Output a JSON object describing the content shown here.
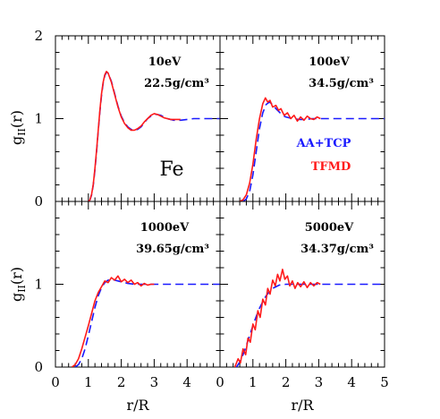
{
  "chart_data": {
    "type": "line",
    "xlabel": "r/R",
    "ylabel_main": "g",
    "ylabel_sub": "II",
    "ylabel_suffix": "(r)",
    "xlim": [
      0,
      5
    ],
    "ylim": [
      0,
      2
    ],
    "x_ticks_left": [
      "0",
      "1",
      "2",
      "3",
      "4"
    ],
    "x_ticks_right": [
      "0",
      "1",
      "2",
      "3",
      "4",
      "5"
    ],
    "y_ticks_top": [
      "2",
      "1",
      "0"
    ],
    "y_ticks_bottom": [
      "1",
      "0"
    ],
    "material_label": "Fe",
    "legend": [
      {
        "name": "AA+TCP",
        "color": "#1a1aff",
        "style": "dashed"
      },
      {
        "name": "TFMD",
        "color": "#ff1a1a",
        "style": "solid"
      }
    ],
    "panels": [
      {
        "id": "top-left",
        "energy": "10eV",
        "density": "22.5g/cm³",
        "series": [
          {
            "name": "AA+TCP",
            "color": "#1a1aff",
            "style": "dashed",
            "points": [
              [
                1.0,
                0
              ],
              [
                1.05,
                0.02
              ],
              [
                1.1,
                0.08
              ],
              [
                1.15,
                0.2
              ],
              [
                1.2,
                0.38
              ],
              [
                1.25,
                0.6
              ],
              [
                1.3,
                0.85
              ],
              [
                1.35,
                1.08
              ],
              [
                1.4,
                1.28
              ],
              [
                1.45,
                1.43
              ],
              [
                1.5,
                1.52
              ],
              [
                1.55,
                1.56
              ],
              [
                1.6,
                1.55
              ],
              [
                1.7,
                1.45
              ],
              [
                1.8,
                1.3
              ],
              [
                1.9,
                1.15
              ],
              [
                2.0,
                1.03
              ],
              [
                2.1,
                0.95
              ],
              [
                2.2,
                0.9
              ],
              [
                2.3,
                0.87
              ],
              [
                2.4,
                0.86
              ],
              [
                2.5,
                0.87
              ],
              [
                2.6,
                0.9
              ],
              [
                2.7,
                0.95
              ],
              [
                2.8,
                1.0
              ],
              [
                2.9,
                1.03
              ],
              [
                3.0,
                1.05
              ],
              [
                3.1,
                1.05
              ],
              [
                3.2,
                1.04
              ],
              [
                3.3,
                1.02
              ],
              [
                3.4,
                1.0
              ],
              [
                3.5,
                0.99
              ],
              [
                3.6,
                0.98
              ],
              [
                3.8,
                0.98
              ],
              [
                4.0,
                0.99
              ],
              [
                4.2,
                1.0
              ],
              [
                4.5,
                1.0
              ],
              [
                5.0,
                1.0
              ]
            ]
          },
          {
            "name": "TFMD",
            "color": "#ff1a1a",
            "style": "solid",
            "points": [
              [
                1.0,
                0
              ],
              [
                1.05,
                0.02
              ],
              [
                1.1,
                0.09
              ],
              [
                1.15,
                0.21
              ],
              [
                1.2,
                0.4
              ],
              [
                1.25,
                0.62
              ],
              [
                1.3,
                0.86
              ],
              [
                1.35,
                1.1
              ],
              [
                1.4,
                1.3
              ],
              [
                1.45,
                1.44
              ],
              [
                1.5,
                1.53
              ],
              [
                1.55,
                1.57
              ],
              [
                1.6,
                1.55
              ],
              [
                1.7,
                1.44
              ],
              [
                1.8,
                1.29
              ],
              [
                1.9,
                1.14
              ],
              [
                2.0,
                1.02
              ],
              [
                2.1,
                0.94
              ],
              [
                2.2,
                0.89
              ],
              [
                2.3,
                0.86
              ],
              [
                2.4,
                0.86
              ],
              [
                2.5,
                0.88
              ],
              [
                2.6,
                0.91
              ],
              [
                2.7,
                0.96
              ],
              [
                2.8,
                1.0
              ],
              [
                2.9,
                1.04
              ],
              [
                3.0,
                1.06
              ],
              [
                3.1,
                1.05
              ],
              [
                3.2,
                1.03
              ],
              [
                3.3,
                1.01
              ],
              [
                3.4,
                1.0
              ],
              [
                3.5,
                0.99
              ],
              [
                3.6,
                0.99
              ],
              [
                3.7,
                0.99
              ],
              [
                3.8,
                0.99
              ]
            ]
          }
        ]
      },
      {
        "id": "top-right",
        "energy": "100eV",
        "density": "34.5g/cm³",
        "series": [
          {
            "name": "AA+TCP",
            "color": "#1a1aff",
            "style": "dashed",
            "points": [
              [
                0.7,
                0
              ],
              [
                0.8,
                0.03
              ],
              [
                0.9,
                0.12
              ],
              [
                1.0,
                0.32
              ],
              [
                1.1,
                0.6
              ],
              [
                1.2,
                0.88
              ],
              [
                1.3,
                1.07
              ],
              [
                1.4,
                1.17
              ],
              [
                1.5,
                1.2
              ],
              [
                1.6,
                1.17
              ],
              [
                1.7,
                1.12
              ],
              [
                1.8,
                1.08
              ],
              [
                1.9,
                1.04
              ],
              [
                2.0,
                1.02
              ],
              [
                2.2,
                1.0
              ],
              [
                2.4,
                0.99
              ],
              [
                2.6,
                0.99
              ],
              [
                2.8,
                1.0
              ],
              [
                3.0,
                1.0
              ],
              [
                3.5,
                1.0
              ],
              [
                4.0,
                1.0
              ],
              [
                4.5,
                1.0
              ],
              [
                5.0,
                1.0
              ]
            ]
          },
          {
            "name": "TFMD",
            "color": "#ff1a1a",
            "style": "solid",
            "points": [
              [
                0.6,
                0
              ],
              [
                0.7,
                0.02
              ],
              [
                0.8,
                0.08
              ],
              [
                0.9,
                0.22
              ],
              [
                1.0,
                0.45
              ],
              [
                1.1,
                0.75
              ],
              [
                1.2,
                1.0
              ],
              [
                1.3,
                1.18
              ],
              [
                1.38,
                1.25
              ],
              [
                1.45,
                1.2
              ],
              [
                1.52,
                1.22
              ],
              [
                1.6,
                1.14
              ],
              [
                1.7,
                1.16
              ],
              [
                1.78,
                1.1
              ],
              [
                1.85,
                1.12
              ],
              [
                1.95,
                1.04
              ],
              [
                2.05,
                1.07
              ],
              [
                2.15,
                1.0
              ],
              [
                2.25,
                1.04
              ],
              [
                2.35,
                0.97
              ],
              [
                2.45,
                1.02
              ],
              [
                2.55,
                0.98
              ],
              [
                2.65,
                1.03
              ],
              [
                2.75,
                1.0
              ],
              [
                2.85,
                0.99
              ],
              [
                2.95,
                1.02
              ],
              [
                3.05,
                1.0
              ]
            ]
          }
        ]
      },
      {
        "id": "bottom-left",
        "energy": "1000eV",
        "density": "39.65g/cm³",
        "series": [
          {
            "name": "AA+TCP",
            "color": "#1a1aff",
            "style": "dashed",
            "points": [
              [
                0.6,
                0
              ],
              [
                0.7,
                0.03
              ],
              [
                0.8,
                0.1
              ],
              [
                0.9,
                0.22
              ],
              [
                1.0,
                0.38
              ],
              [
                1.1,
                0.55
              ],
              [
                1.2,
                0.72
              ],
              [
                1.3,
                0.86
              ],
              [
                1.4,
                0.96
              ],
              [
                1.5,
                1.02
              ],
              [
                1.6,
                1.05
              ],
              [
                1.7,
                1.06
              ],
              [
                1.8,
                1.05
              ],
              [
                1.9,
                1.04
              ],
              [
                2.0,
                1.03
              ],
              [
                2.2,
                1.01
              ],
              [
                2.4,
                1.0
              ],
              [
                2.6,
                1.0
              ],
              [
                2.8,
                1.0
              ],
              [
                3.0,
                1.0
              ],
              [
                3.5,
                1.0
              ],
              [
                4.0,
                1.0
              ],
              [
                4.5,
                1.0
              ],
              [
                5.0,
                1.0
              ]
            ]
          },
          {
            "name": "TFMD",
            "color": "#ff1a1a",
            "style": "solid",
            "points": [
              [
                0.5,
                0
              ],
              [
                0.6,
                0.03
              ],
              [
                0.7,
                0.1
              ],
              [
                0.8,
                0.22
              ],
              [
                0.9,
                0.36
              ],
              [
                1.0,
                0.5
              ],
              [
                1.1,
                0.65
              ],
              [
                1.2,
                0.8
              ],
              [
                1.3,
                0.9
              ],
              [
                1.4,
                0.97
              ],
              [
                1.5,
                1.04
              ],
              [
                1.6,
                1.02
              ],
              [
                1.7,
                1.08
              ],
              [
                1.8,
                1.05
              ],
              [
                1.9,
                1.1
              ],
              [
                2.0,
                1.03
              ],
              [
                2.1,
                1.06
              ],
              [
                2.2,
                1.02
              ],
              [
                2.3,
                1.05
              ],
              [
                2.4,
                1.0
              ],
              [
                2.5,
                1.02
              ],
              [
                2.6,
                0.98
              ],
              [
                2.7,
                1.01
              ],
              [
                2.8,
                0.99
              ],
              [
                2.9,
                1.0
              ],
              [
                3.0,
                1.0
              ]
            ]
          }
        ]
      },
      {
        "id": "bottom-right",
        "energy": "5000eV",
        "density": "34.37g/cm³",
        "series": [
          {
            "name": "AA+TCP",
            "color": "#1a1aff",
            "style": "dashed",
            "points": [
              [
                0.5,
                0
              ],
              [
                0.6,
                0.06
              ],
              [
                0.7,
                0.15
              ],
              [
                0.8,
                0.26
              ],
              [
                0.9,
                0.38
              ],
              [
                1.0,
                0.5
              ],
              [
                1.1,
                0.61
              ],
              [
                1.2,
                0.71
              ],
              [
                1.3,
                0.79
              ],
              [
                1.4,
                0.86
              ],
              [
                1.5,
                0.91
              ],
              [
                1.6,
                0.95
              ],
              [
                1.7,
                0.97
              ],
              [
                1.8,
                0.99
              ],
              [
                2.0,
                1.0
              ],
              [
                2.5,
                1.0
              ],
              [
                3.0,
                1.0
              ],
              [
                3.5,
                1.0
              ],
              [
                4.0,
                1.0
              ],
              [
                4.5,
                1.0
              ],
              [
                5.0,
                1.0
              ]
            ]
          },
          {
            "name": "TFMD",
            "color": "#ff1a1a",
            "style": "solid",
            "points": [
              [
                0.45,
                0
              ],
              [
                0.55,
                0.1
              ],
              [
                0.62,
                0.05
              ],
              [
                0.7,
                0.22
              ],
              [
                0.78,
                0.15
              ],
              [
                0.85,
                0.35
              ],
              [
                0.92,
                0.3
              ],
              [
                1.0,
                0.52
              ],
              [
                1.07,
                0.45
              ],
              [
                1.15,
                0.68
              ],
              [
                1.22,
                0.6
              ],
              [
                1.3,
                0.82
              ],
              [
                1.38,
                0.75
              ],
              [
                1.45,
                0.95
              ],
              [
                1.52,
                0.88
              ],
              [
                1.6,
                1.05
              ],
              [
                1.68,
                0.98
              ],
              [
                1.75,
                1.12
              ],
              [
                1.82,
                1.04
              ],
              [
                1.9,
                1.18
              ],
              [
                1.97,
                1.06
              ],
              [
                2.05,
                1.1
              ],
              [
                2.12,
                0.98
              ],
              [
                2.2,
                1.04
              ],
              [
                2.28,
                0.95
              ],
              [
                2.36,
                1.02
              ],
              [
                2.45,
                0.97
              ],
              [
                2.55,
                1.03
              ],
              [
                2.65,
                0.96
              ],
              [
                2.75,
                1.02
              ],
              [
                2.85,
                0.98
              ],
              [
                2.95,
                1.02
              ],
              [
                3.05,
                1.0
              ]
            ]
          }
        ]
      }
    ]
  }
}
